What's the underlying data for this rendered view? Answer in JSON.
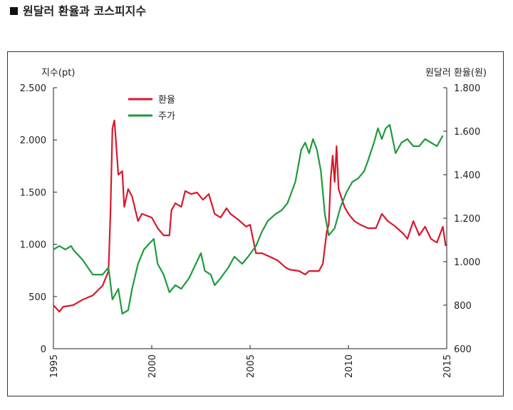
{
  "chart_data": {
    "type": "line",
    "title": "원달러 환율과 코스피지수",
    "y_label": "지수(pt)",
    "y2_label": "원달러 환율(원)",
    "xlim": [
      1995,
      2015
    ],
    "xticks": [
      1995,
      2000,
      2005,
      2010,
      2015
    ],
    "ylim": [
      0,
      2500
    ],
    "yticks": [
      0,
      500,
      {
        "value": 1000,
        "label": "1.000"
      },
      {
        "value": 1500,
        "label": "1.500"
      },
      {
        "value": 2000,
        "label": "2.000"
      },
      {
        "value": 2500,
        "label": "2.500"
      }
    ],
    "y2lim": [
      600,
      1800
    ],
    "y2ticks": [
      600,
      800,
      {
        "value": 1000,
        "label": "1.000"
      },
      {
        "value": 1200,
        "label": "1.200"
      },
      {
        "value": 1400,
        "label": "1.400"
      },
      {
        "value": 1600,
        "label": "1.600"
      },
      {
        "value": 1800,
        "label": "1.800"
      }
    ],
    "series": [
      {
        "name": "환율",
        "color": "#d7192d",
        "axis": "y2",
        "x": [
          1995.0,
          1995.3,
          1995.5,
          1996.0,
          1996.5,
          1997.0,
          1997.5,
          1997.8,
          1997.9,
          1998.0,
          1998.1,
          1998.3,
          1998.5,
          1998.6,
          1998.8,
          1999.0,
          1999.3,
          1999.5,
          2000.0,
          2000.3,
          2000.6,
          2000.9,
          2001.0,
          2001.2,
          2001.5,
          2001.7,
          2002.0,
          2002.3,
          2002.6,
          2002.9,
          2003.2,
          2003.5,
          2003.8,
          2004.0,
          2004.4,
          2004.8,
          2005.0,
          2005.3,
          2005.6,
          2006.0,
          2006.4,
          2006.8,
          2007.0,
          2007.5,
          2007.8,
          2008.0,
          2008.3,
          2008.5,
          2008.7,
          2008.9,
          2009.0,
          2009.1,
          2009.2,
          2009.3,
          2009.4,
          2009.5,
          2009.8,
          2010.0,
          2010.3,
          2010.6,
          2011.0,
          2011.4,
          2011.7,
          2012.0,
          2012.4,
          2012.8,
          2013.0,
          2013.3,
          2013.6,
          2013.9,
          2014.2,
          2014.5,
          2014.8,
          2014.95
        ],
        "values": [
          800,
          770,
          793,
          800,
          826,
          845,
          890,
          957,
          1220,
          1613,
          1650,
          1400,
          1416,
          1252,
          1334,
          1300,
          1187,
          1220,
          1203,
          1154,
          1121,
          1121,
          1236,
          1269,
          1252,
          1325,
          1311,
          1318,
          1285,
          1311,
          1220,
          1203,
          1246,
          1220,
          1193,
          1161,
          1170,
          1039,
          1039,
          1023,
          1006,
          974,
          964,
          957,
          941,
          957,
          957,
          957,
          990,
          1138,
          1170,
          1384,
          1488,
          1367,
          1531,
          1334,
          1252,
          1220,
          1187,
          1170,
          1154,
          1154,
          1220,
          1187,
          1161,
          1128,
          1105,
          1187,
          1121,
          1161,
          1105,
          1088,
          1161,
          1072
        ]
      },
      {
        "name": "주가",
        "color": "#1e9b3c",
        "axis": "y",
        "x": [
          1995.0,
          1995.3,
          1995.6,
          1995.9,
          1996.0,
          1996.5,
          1997.0,
          1997.5,
          1997.8,
          1998.0,
          1998.3,
          1998.5,
          1998.8,
          1999.0,
          1999.3,
          1999.6,
          2000.1,
          2000.3,
          2000.6,
          2000.9,
          2001.2,
          2001.5,
          2001.9,
          2002.5,
          2002.7,
          2003.0,
          2003.2,
          2003.5,
          2003.9,
          2004.2,
          2004.6,
          2004.9,
          2005.3,
          2005.6,
          2005.9,
          2006.3,
          2006.6,
          2006.9,
          2007.3,
          2007.6,
          2007.8,
          2008.0,
          2008.2,
          2008.4,
          2008.6,
          2008.8,
          2009.0,
          2009.3,
          2009.6,
          2009.9,
          2010.2,
          2010.5,
          2010.8,
          2011.0,
          2011.3,
          2011.5,
          2011.7,
          2011.9,
          2012.1,
          2012.4,
          2012.7,
          2013.0,
          2013.3,
          2013.6,
          2013.9,
          2014.2,
          2014.5,
          2014.8
        ],
        "values": [
          950,
          984,
          950,
          984,
          950,
          847,
          710,
          710,
          779,
          471,
          574,
          335,
          369,
          574,
          813,
          950,
          1052,
          813,
          710,
          540,
          608,
          574,
          676,
          915,
          745,
          710,
          608,
          676,
          779,
          881,
          813,
          881,
          984,
          1120,
          1223,
          1291,
          1325,
          1393,
          1598,
          1906,
          1974,
          1872,
          2008,
          1906,
          1701,
          1291,
          1086,
          1154,
          1359,
          1496,
          1598,
          1632,
          1701,
          1803,
          1974,
          2111,
          2008,
          2111,
          2145,
          1872,
          1974,
          2008,
          1940,
          1940,
          2008,
          1974,
          1940,
          2042
        ]
      }
    ]
  }
}
